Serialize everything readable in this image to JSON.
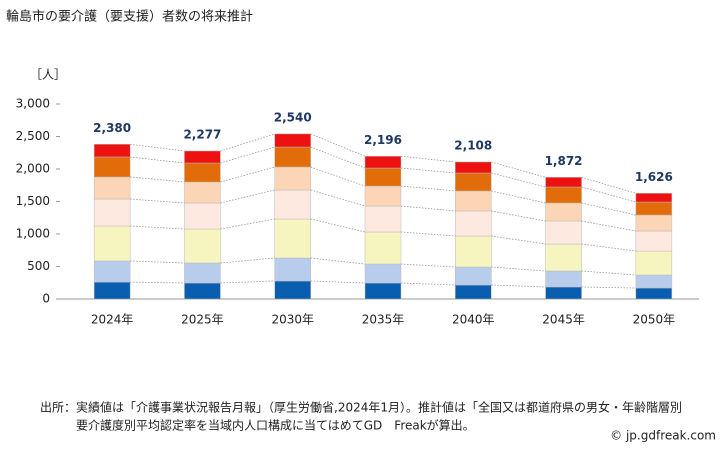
{
  "chart_data": {
    "type": "stacked-bar",
    "title": "輪島市の要介護（要支援）者数の将来推計",
    "y_label": "［人］",
    "categories": [
      "2024年",
      "2025年",
      "2030年",
      "2035年",
      "2040年",
      "2045年",
      "2050年"
    ],
    "series": [
      {
        "color": "#0a5eb0",
        "values": [
          260,
          246,
          277,
          246,
          215,
          185,
          169
        ]
      },
      {
        "color": "#b8cdec",
        "values": [
          325,
          308,
          354,
          292,
          277,
          246,
          200
        ]
      },
      {
        "color": "#f6f5c0",
        "values": [
          538,
          523,
          600,
          493,
          477,
          415,
          369
        ]
      },
      {
        "color": "#fde9df",
        "values": [
          415,
          400,
          446,
          400,
          385,
          354,
          308
        ]
      },
      {
        "color": "#fbd5b5",
        "values": [
          339,
          323,
          354,
          307,
          308,
          277,
          246
        ]
      },
      {
        "color": "#e36c0a",
        "values": [
          308,
          292,
          307,
          277,
          276,
          246,
          200
        ]
      },
      {
        "color": "#ee1111",
        "values": [
          195,
          185,
          202,
          181,
          170,
          149,
          134
        ]
      }
    ],
    "totals": {
      "values": [
        2380,
        2277,
        2540,
        2196,
        2108,
        1872,
        1626
      ],
      "value_labels": [
        "2,380",
        "2,277",
        "2,540",
        "2,196",
        "2,108",
        "1,872",
        "1,626"
      ]
    },
    "ylim": [
      0,
      3000
    ],
    "yticks": [
      0,
      500,
      {
        "value": 1000,
        "label": "1,000"
      },
      {
        "value": 1500,
        "label": "1,500"
      },
      {
        "value": 2000,
        "label": "2,000"
      },
      {
        "value": 2500,
        "label": "2,500"
      },
      {
        "value": 3000,
        "label": "3,000"
      }
    ],
    "source": [
      "出所：実績値は「介護事業状況報告月報」（厚生労働省,2024年1月）。推計値は「全国又は都道府県の男女・年齢階層別",
      "要介護度別平均認定率を当域内人口構成に当てはめてGD　Freakが算出。"
    ],
    "credit": "© jp.gdfreak.com"
  }
}
